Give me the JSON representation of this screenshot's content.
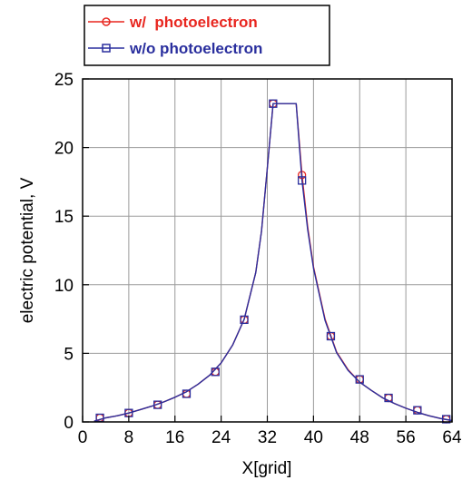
{
  "chart_data": {
    "type": "line",
    "xlabel": "X[grid]",
    "ylabel": "electric potential, V",
    "xlim": [
      0,
      64
    ],
    "ylim": [
      0,
      25
    ],
    "xticks": [
      0,
      8,
      16,
      24,
      32,
      40,
      48,
      56,
      64
    ],
    "yticks": [
      0,
      5,
      10,
      15,
      20,
      25
    ],
    "grid": true,
    "legend_position": "top-left, outside plot",
    "series": [
      {
        "name": "w/  photoelectron",
        "color": "#e8261f",
        "marker": "circle",
        "x": [
          2,
          4,
          6,
          8,
          10,
          12,
          14,
          16,
          18,
          20,
          22,
          24,
          26,
          28,
          30,
          31,
          32,
          33,
          34,
          35,
          36,
          37,
          38,
          39,
          40,
          42,
          44,
          46,
          48,
          50,
          52,
          54,
          56,
          58,
          60,
          62,
          64
        ],
        "values": [
          0.05,
          0.3,
          0.45,
          0.65,
          0.9,
          1.15,
          1.45,
          1.8,
          2.2,
          2.75,
          3.4,
          4.3,
          5.6,
          7.5,
          10.9,
          13.9,
          18.5,
          23.2,
          23.2,
          23.2,
          23.2,
          23.2,
          18.0,
          14.2,
          11.3,
          7.5,
          5.1,
          3.8,
          2.9,
          2.3,
          1.75,
          1.35,
          1.0,
          0.7,
          0.45,
          0.25,
          0.1
        ],
        "marker_x": [
          3,
          8,
          13,
          18,
          23,
          28,
          33,
          38,
          43,
          48,
          53,
          58,
          63
        ],
        "marker_values": [
          0.3,
          0.65,
          1.25,
          2.05,
          3.65,
          7.45,
          23.2,
          18.0,
          6.25,
          3.1,
          1.75,
          0.85,
          0.2
        ]
      },
      {
        "name": "w/o photoelectron",
        "color": "#2a2f9e",
        "marker": "square",
        "x": [
          2,
          4,
          6,
          8,
          10,
          12,
          14,
          16,
          18,
          20,
          22,
          24,
          26,
          28,
          30,
          31,
          32,
          33,
          34,
          35,
          36,
          37,
          38,
          39,
          40,
          42,
          44,
          46,
          48,
          50,
          52,
          54,
          56,
          58,
          60,
          62,
          64
        ],
        "values": [
          0.05,
          0.3,
          0.45,
          0.65,
          0.9,
          1.15,
          1.45,
          1.8,
          2.2,
          2.75,
          3.4,
          4.3,
          5.6,
          7.5,
          10.9,
          13.9,
          18.5,
          23.2,
          23.2,
          23.2,
          23.2,
          23.2,
          17.6,
          14.0,
          11.2,
          7.4,
          5.05,
          3.75,
          2.9,
          2.3,
          1.75,
          1.35,
          1.0,
          0.7,
          0.45,
          0.25,
          0.1
        ],
        "marker_x": [
          3,
          8,
          13,
          18,
          23,
          28,
          33,
          38,
          43,
          48,
          53,
          58,
          63
        ],
        "marker_values": [
          0.3,
          0.65,
          1.25,
          2.05,
          3.65,
          7.45,
          23.2,
          17.6,
          6.25,
          3.1,
          1.75,
          0.85,
          0.2
        ]
      }
    ]
  }
}
